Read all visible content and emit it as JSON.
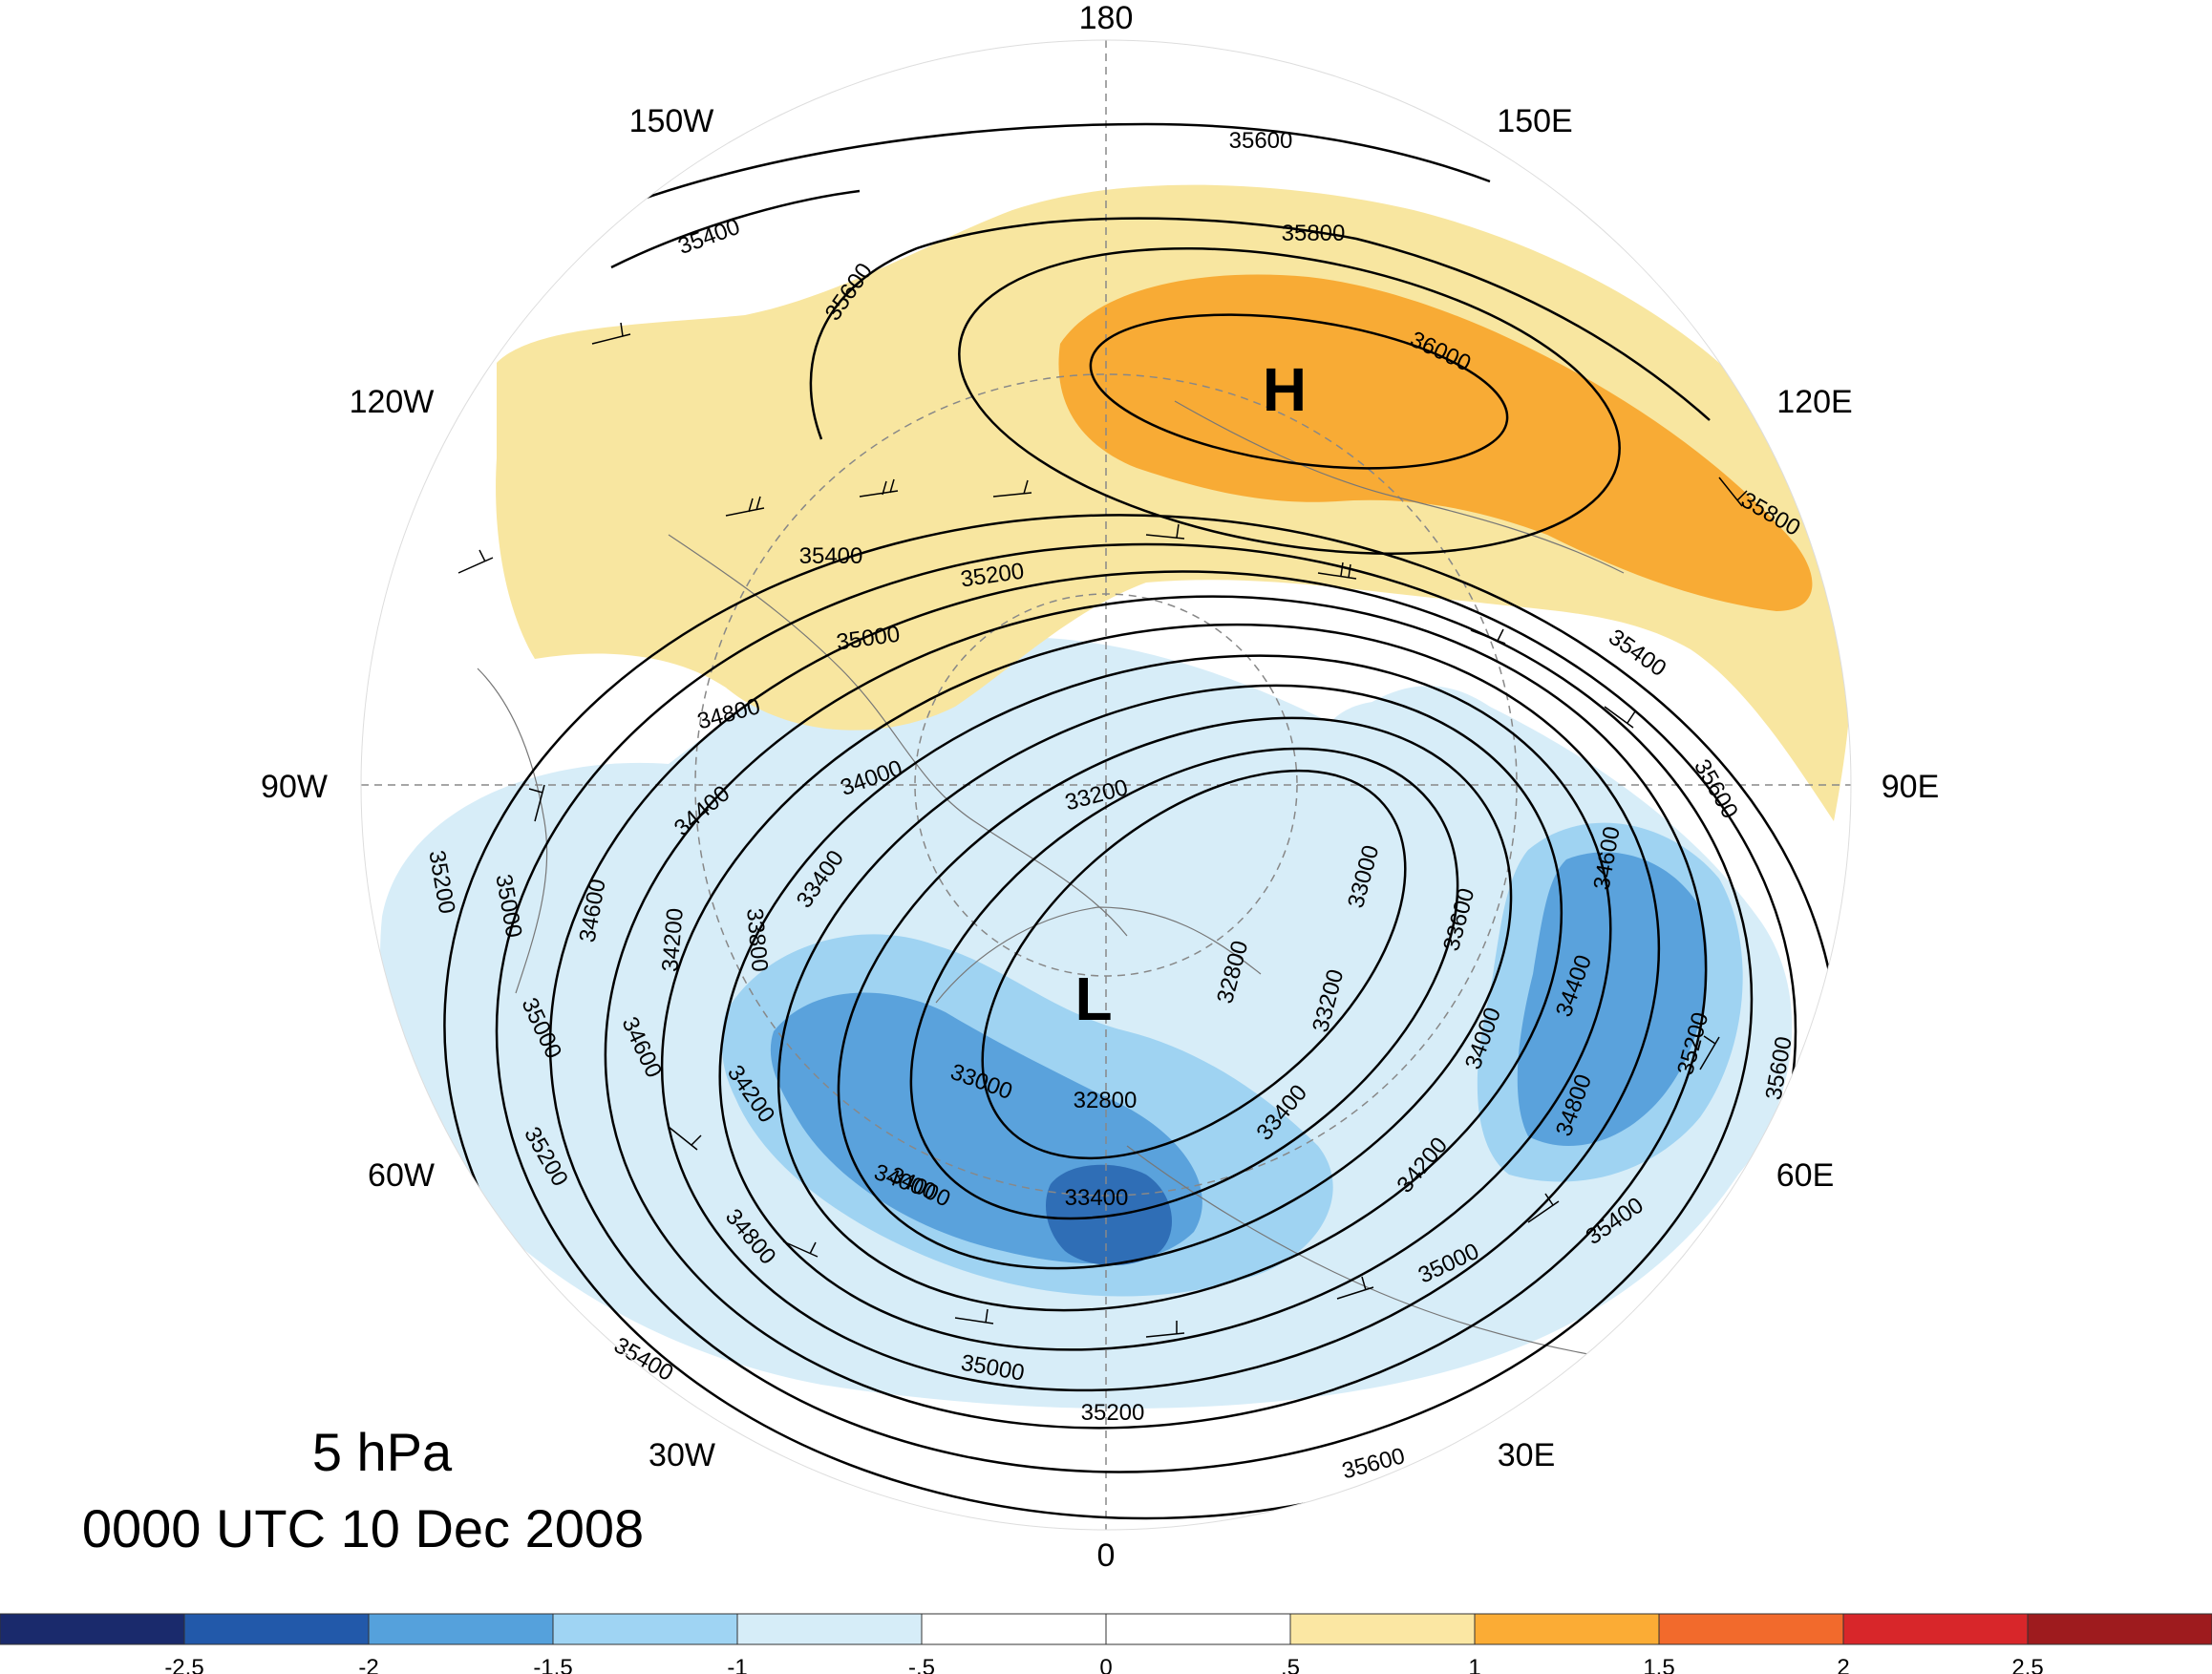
{
  "title": {
    "level": "5 hPa",
    "time": "0000 UTC 10 Dec 2008"
  },
  "longitude_labels": [
    "180",
    "150E",
    "120E",
    "90E",
    "60E",
    "30E",
    "0",
    "30W",
    "60W",
    "90W",
    "120W",
    "150W"
  ],
  "pressure_centers": {
    "high": "H",
    "low": "L"
  },
  "contour_labels": [
    "35600",
    "35800",
    "36000",
    "35800",
    "35600",
    "35400",
    "35400",
    "35600",
    "35400",
    "35200",
    "35000",
    "34800",
    "34400",
    "34000",
    "33200",
    "33000",
    "33600",
    "34600",
    "34400",
    "34000",
    "35200",
    "34800",
    "35600",
    "35400",
    "35000",
    "35200",
    "35000",
    "35400",
    "35600",
    "34800",
    "34000",
    "34200",
    "34600",
    "35000",
    "35200",
    "34200",
    "33800",
    "33400",
    "33000",
    "32800",
    "32800",
    "33200",
    "33400",
    "34200",
    "33400",
    "35200",
    "35000",
    "34600",
    "34000"
  ],
  "colorbar": {
    "ticks": [
      "-2.5",
      "-2",
      "-1.5",
      "-1",
      "-.5",
      "0",
      ".5",
      "1",
      "1.5",
      "2",
      "2.5"
    ],
    "colors": [
      "#1a2a6c",
      "#2259aa",
      "#55a1dc",
      "#9fd4f3",
      "#d6edf8",
      "#ffffff",
      "#ffffff",
      "#fbe7a3",
      "#fbac35",
      "#f26a2c",
      "#d8262a",
      "#9e1b1e"
    ]
  },
  "colors": {
    "anomaly_positive_1": "#f8e6a0",
    "anomaly_positive_2": "#f8ab35",
    "anomaly_negative_1": "#d7edf8",
    "anomaly_negative_2": "#9fd3f2",
    "anomaly_negative_3": "#5aa2dc",
    "anomaly_negative_4": "#2f6eb6"
  }
}
